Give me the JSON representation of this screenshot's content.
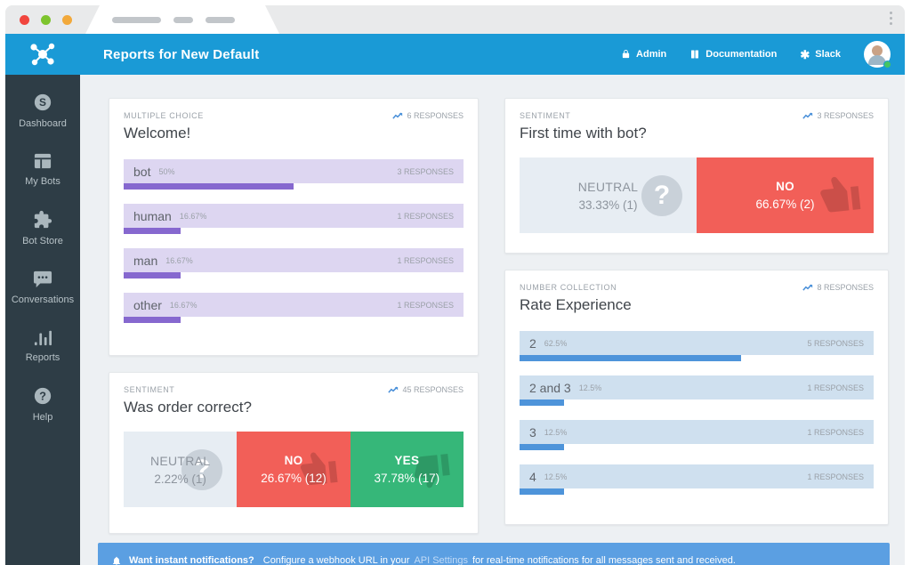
{
  "header": {
    "title": "Reports for New Default",
    "nav": {
      "admin": "Admin",
      "documentation": "Documentation",
      "slack": "Slack"
    }
  },
  "sidebar": {
    "items": [
      {
        "label": "Dashboard"
      },
      {
        "label": "My Bots"
      },
      {
        "label": "Bot Store"
      },
      {
        "label": "Conversations"
      },
      {
        "label": "Reports"
      },
      {
        "label": "Help"
      }
    ]
  },
  "cards": {
    "welcome": {
      "category": "MULTIPLE CHOICE",
      "title": "Welcome!",
      "responses": "6 RESPONSES",
      "bars": [
        {
          "label": "bot",
          "pct": "50%",
          "width": 50,
          "responses": "3 RESPONSES"
        },
        {
          "label": "human",
          "pct": "16.67%",
          "width": 16.67,
          "responses": "1 RESPONSES"
        },
        {
          "label": "man",
          "pct": "16.67%",
          "width": 16.67,
          "responses": "1 RESPONSES"
        },
        {
          "label": "other",
          "pct": "16.67%",
          "width": 16.67,
          "responses": "1 RESPONSES"
        }
      ]
    },
    "first_time": {
      "category": "SENTIMENT",
      "title": "First time with bot?",
      "responses": "3 RESPONSES",
      "segments": [
        {
          "label": "NEUTRAL",
          "value": "33.33% (1)"
        },
        {
          "label": "NO",
          "value": "66.67% (2)"
        }
      ]
    },
    "order": {
      "category": "SENTIMENT",
      "title": "Was order correct?",
      "responses": "45 RESPONSES",
      "segments": [
        {
          "label": "NEUTRAL",
          "value": "2.22% (1)"
        },
        {
          "label": "NO",
          "value": "26.67% (12)"
        },
        {
          "label": "YES",
          "value": "37.78% (17)"
        }
      ]
    },
    "rate": {
      "category": "NUMBER COLLECTION",
      "title": "Rate Experience",
      "responses": "8 RESPONSES",
      "bars": [
        {
          "label": "2",
          "pct": "62.5%",
          "width": 62.5,
          "responses": "5 RESPONSES"
        },
        {
          "label": "2 and 3",
          "pct": "12.5%",
          "width": 12.5,
          "responses": "1 RESPONSES"
        },
        {
          "label": "3",
          "pct": "12.5%",
          "width": 12.5,
          "responses": "1 RESPONSES"
        },
        {
          "label": "4",
          "pct": "12.5%",
          "width": 12.5,
          "responses": "1 RESPONSES"
        }
      ]
    }
  },
  "notification": {
    "bold": "Want instant notifications?",
    "pre": "Configure a webhook URL in your",
    "link": "API Settings",
    "post": "for real-time notifications for all messages sent and received."
  },
  "colors": {
    "header_blue": "#1a9ad6",
    "sidebar_dark": "#2e3d46",
    "purple_fill": "#8668cf",
    "purple_track": "#ddd6f1",
    "blue_fill": "#4e94da",
    "blue_track": "#cfe0ef",
    "neutral_bg": "#e7edf3",
    "no_red": "#f25f58",
    "yes_green": "#36b779",
    "notif_blue": "#5b9fe2"
  },
  "chart_data": [
    {
      "type": "bar",
      "title": "Welcome!",
      "subtitle": "MULTIPLE CHOICE",
      "total_responses": 6,
      "categories": [
        "bot",
        "human",
        "man",
        "other"
      ],
      "values": [
        3,
        1,
        1,
        1
      ],
      "percentages": [
        50,
        16.67,
        16.67,
        16.67
      ]
    },
    {
      "type": "bar",
      "title": "First time with bot?",
      "subtitle": "SENTIMENT",
      "total_responses": 3,
      "categories": [
        "NEUTRAL",
        "NO"
      ],
      "values": [
        1,
        2
      ],
      "percentages": [
        33.33,
        66.67
      ]
    },
    {
      "type": "bar",
      "title": "Was order correct?",
      "subtitle": "SENTIMENT",
      "total_responses": 45,
      "categories": [
        "NEUTRAL",
        "NO",
        "YES"
      ],
      "values": [
        1,
        12,
        17
      ],
      "percentages": [
        2.22,
        26.67,
        37.78
      ]
    },
    {
      "type": "bar",
      "title": "Rate Experience",
      "subtitle": "NUMBER COLLECTION",
      "total_responses": 8,
      "categories": [
        "2",
        "2 and 3",
        "3",
        "4"
      ],
      "values": [
        5,
        1,
        1,
        1
      ],
      "percentages": [
        62.5,
        12.5,
        12.5,
        12.5
      ]
    }
  ]
}
